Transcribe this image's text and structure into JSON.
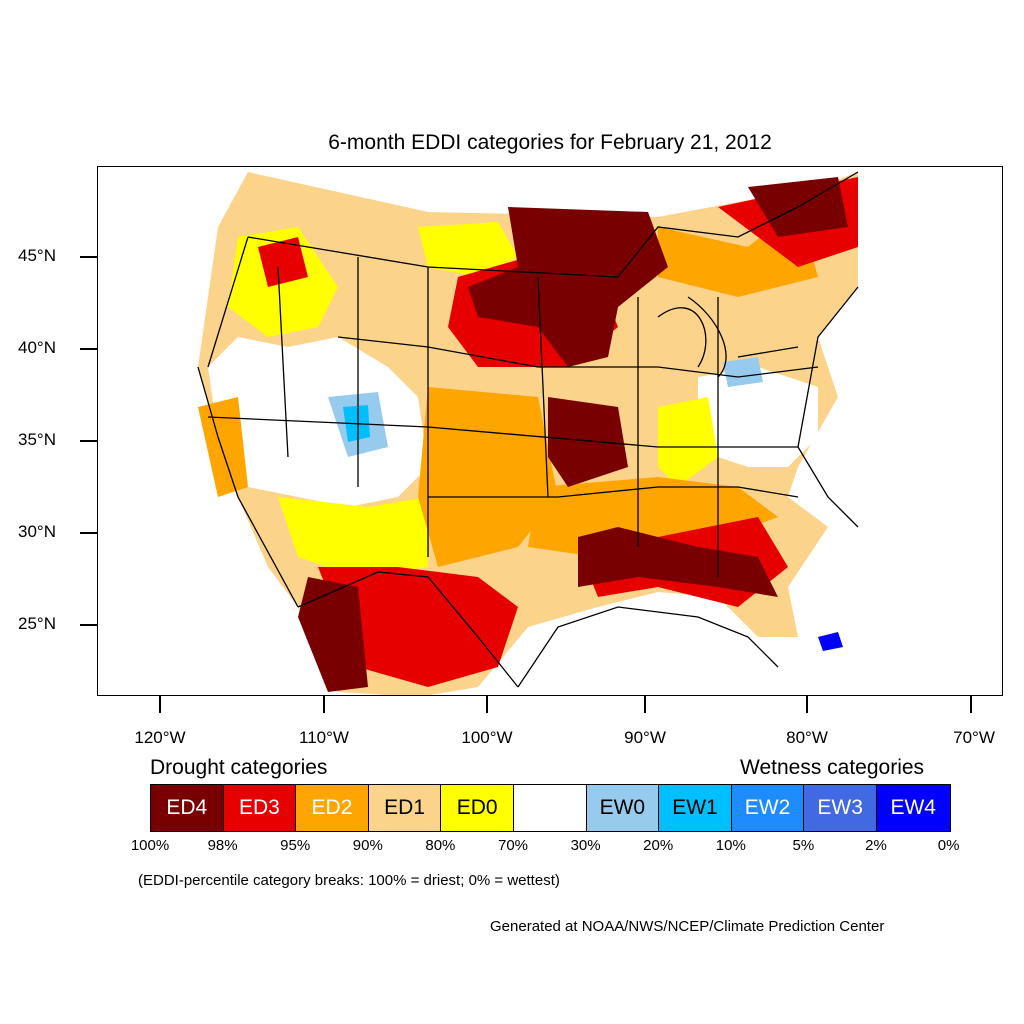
{
  "title": "6-month EDDI categories for February 21, 2012",
  "map": {
    "type": "choropleth",
    "region": "Contiguous United States",
    "projection": "Lambert conformal",
    "lat_ticks": [
      "45°N",
      "40°N",
      "35°N",
      "30°N",
      "25°N"
    ],
    "lon_ticks": [
      "120°W",
      "110°W",
      "100°W",
      "90°W",
      "80°W",
      "70°W"
    ]
  },
  "legend": {
    "drought_heading": "Drought categories",
    "wetness_heading": "Wetness categories",
    "categories": [
      {
        "label": "ED4",
        "color": "#780000",
        "text_color": "#ffffff"
      },
      {
        "label": "ED3",
        "color": "#e60000",
        "text_color": "#ffffff"
      },
      {
        "label": "ED2",
        "color": "#ffa500",
        "text_color": "#ffffff"
      },
      {
        "label": "ED1",
        "color": "#fcd38a",
        "text_color": "#000000"
      },
      {
        "label": "ED0",
        "color": "#ffff00",
        "text_color": "#000000"
      },
      {
        "label": "",
        "color": "#ffffff",
        "text_color": "#000000"
      },
      {
        "label": "EW0",
        "color": "#96cbee",
        "text_color": "#000000"
      },
      {
        "label": "EW1",
        "color": "#00bfff",
        "text_color": "#000000"
      },
      {
        "label": "EW2",
        "color": "#1e8cff",
        "text_color": "#ffffff"
      },
      {
        "label": "EW3",
        "color": "#4169e1",
        "text_color": "#ffffff"
      },
      {
        "label": "EW4",
        "color": "#0000ff",
        "text_color": "#ffffff"
      }
    ],
    "breaks": [
      "100%",
      "98%",
      "95%",
      "90%",
      "80%",
      "70%",
      "30%",
      "20%",
      "10%",
      "5%",
      "2%",
      "0%"
    ],
    "note": "(EDDI-percentile category breaks: 100% = driest; 0% = wettest)"
  },
  "credit": "Generated at NOAA/NWS/NCEP/Climate Prediction Center"
}
